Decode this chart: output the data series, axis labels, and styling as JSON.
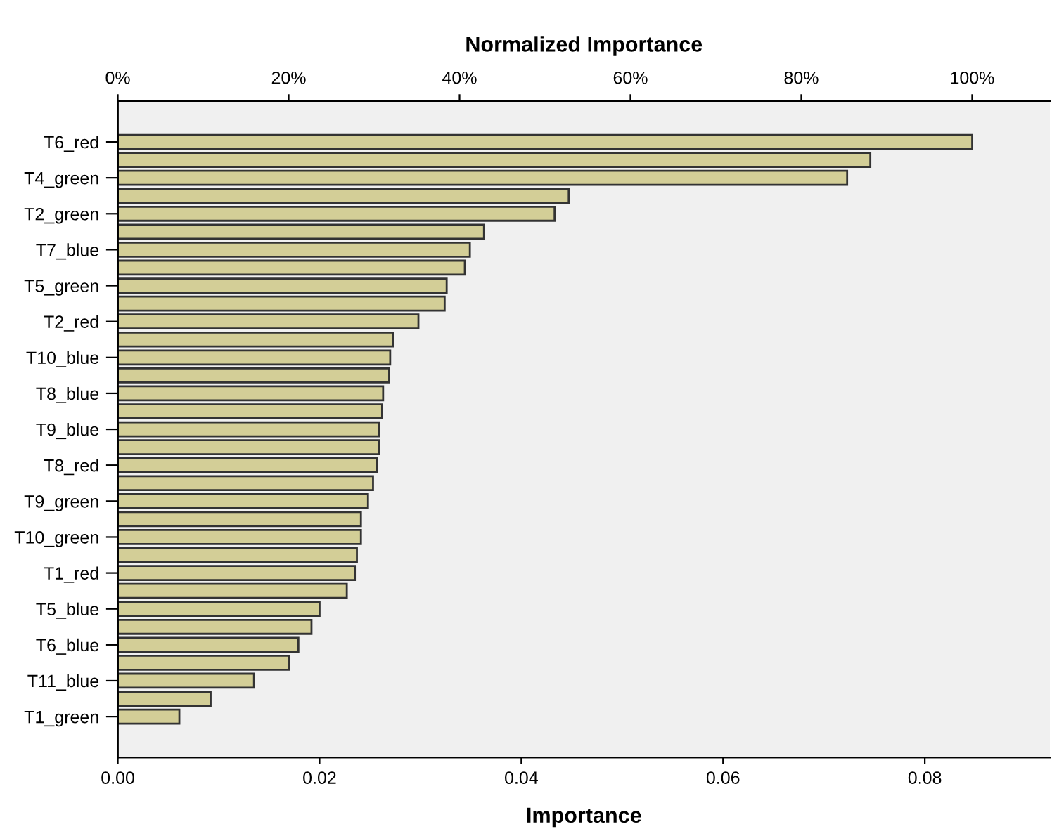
{
  "chart_data": {
    "type": "bar",
    "orientation": "horizontal",
    "xlabel": "Importance",
    "x2label": "Normalized Importance",
    "categories": [
      "T6_red",
      null,
      "T4_green",
      null,
      "T2_green",
      null,
      "T7_blue",
      null,
      "T5_green",
      null,
      "T2_red",
      null,
      "T10_blue",
      null,
      "T8_blue",
      null,
      "T9_blue",
      null,
      "T8_red",
      null,
      "T9_green",
      null,
      "T10_green",
      null,
      "T1_red",
      null,
      "T5_blue",
      null,
      "T6_blue",
      null,
      "T11_blue",
      null,
      "T1_green"
    ],
    "values": [
      0.0847,
      0.0746,
      0.0723,
      0.0447,
      0.0433,
      0.0363,
      0.0349,
      0.0344,
      0.0326,
      0.0324,
      0.0298,
      0.0273,
      0.027,
      0.0269,
      0.0263,
      0.0262,
      0.0259,
      0.0259,
      0.0257,
      0.0253,
      0.0248,
      0.0241,
      0.0241,
      0.0237,
      0.0235,
      0.0227,
      0.02,
      0.0192,
      0.0179,
      0.017,
      0.0135,
      0.0092,
      0.0061
    ],
    "color": "#d3ce97",
    "xlim": [
      0,
      0.0924
    ],
    "xticks": [
      {
        "value": 0,
        "label": "0.00"
      },
      {
        "value": 0.02,
        "label": "0.02"
      },
      {
        "value": 0.04,
        "label": "0.04"
      },
      {
        "value": 0.06,
        "label": "0.06"
      },
      {
        "value": 0.08,
        "label": "0.08"
      }
    ],
    "x2lim": [
      0,
      109.1
    ],
    "x2ticks": [
      {
        "value": 0,
        "label": "0%"
      },
      {
        "value": 20,
        "label": "20%"
      },
      {
        "value": 40,
        "label": "40%"
      },
      {
        "value": 60,
        "label": "60%"
      },
      {
        "value": 80,
        "label": "80%"
      },
      {
        "value": 100,
        "label": "100%"
      }
    ],
    "grid": false,
    "legend": false
  }
}
